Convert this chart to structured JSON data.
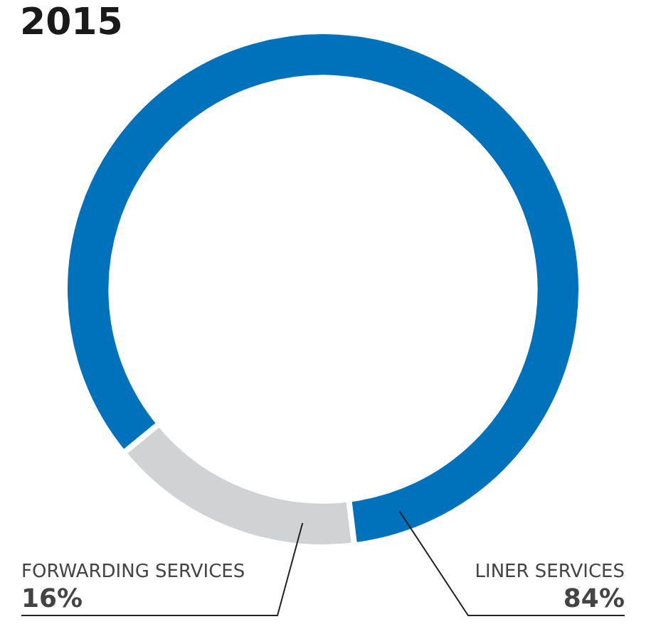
{
  "chart_data": {
    "type": "donut",
    "title": "2015",
    "categories": [
      "FORWARDING SERVICES",
      "LINER SERVICES"
    ],
    "values": [
      16,
      84
    ],
    "colors": [
      "#d1d2d4",
      "#0072bc"
    ],
    "value_labels": [
      "16%",
      "84%"
    ],
    "legend": false
  }
}
